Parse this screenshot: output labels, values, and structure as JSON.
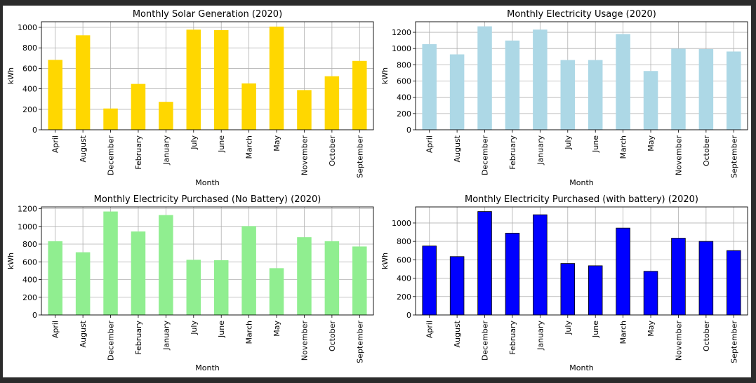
{
  "colors": {
    "page_background": "#2b2b2b",
    "figure_background": "#ffffff",
    "grid": "#b0b0b0"
  },
  "chart_data": [
    {
      "type": "bar",
      "title": "Monthly Solar Generation (2020)",
      "xlabel": "Month",
      "ylabel": "kWh",
      "categories": [
        "April",
        "August",
        "December",
        "February",
        "January",
        "July",
        "June",
        "March",
        "May",
        "November",
        "October",
        "September"
      ],
      "values": [
        680,
        920,
        205,
        445,
        270,
        975,
        970,
        450,
        1005,
        385,
        520,
        670
      ],
      "ylim": [
        0,
        1055
      ],
      "yticks": [
        0,
        200,
        400,
        600,
        800,
        1000
      ],
      "color": "#ffd700",
      "edge_color": "#ffd700",
      "grid": true
    },
    {
      "type": "bar",
      "title": "Monthly Electricity Usage (2020)",
      "xlabel": "Month",
      "ylabel": "kWh",
      "categories": [
        "April",
        "August",
        "December",
        "February",
        "January",
        "July",
        "June",
        "March",
        "May",
        "November",
        "October",
        "September"
      ],
      "values": [
        1050,
        925,
        1270,
        1095,
        1230,
        855,
        855,
        1175,
        720,
        995,
        990,
        960
      ],
      "ylim": [
        0,
        1330
      ],
      "yticks": [
        0,
        200,
        400,
        600,
        800,
        1000,
        1200
      ],
      "color": "#add8e6",
      "edge_color": "#add8e6",
      "grid": true
    },
    {
      "type": "bar",
      "title": "Monthly Electricity Purchased (No Battery) (2020)",
      "xlabel": "Month",
      "ylabel": "kWh",
      "categories": [
        "April",
        "August",
        "December",
        "February",
        "January",
        "July",
        "June",
        "March",
        "May",
        "November",
        "October",
        "September"
      ],
      "values": [
        830,
        705,
        1165,
        940,
        1125,
        620,
        615,
        1000,
        525,
        875,
        830,
        770
      ],
      "ylim": [
        0,
        1220
      ],
      "yticks": [
        0,
        200,
        400,
        600,
        800,
        1000,
        1200
      ],
      "color": "#90ee90",
      "edge_color": "#90ee90",
      "grid": true
    },
    {
      "type": "bar",
      "title": "Monthly Electricity Purchased (with battery) (2020)",
      "xlabel": "Month",
      "ylabel": "kWh",
      "categories": [
        "April",
        "August",
        "December",
        "February",
        "January",
        "July",
        "June",
        "March",
        "May",
        "November",
        "October",
        "September"
      ],
      "values": [
        750,
        635,
        1125,
        890,
        1090,
        560,
        535,
        945,
        475,
        835,
        800,
        700
      ],
      "ylim": [
        0,
        1175
      ],
      "yticks": [
        0,
        200,
        400,
        600,
        800,
        1000
      ],
      "color": "#0000ff",
      "edge_color": "#000000",
      "grid": true
    }
  ]
}
